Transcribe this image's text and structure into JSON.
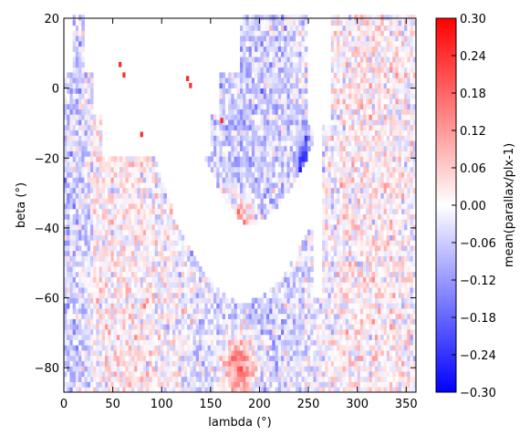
{
  "chart_data": {
    "type": "heatmap",
    "title": "",
    "xlabel": "lambda (°)",
    "ylabel": "beta (°)",
    "xlim": [
      0,
      360
    ],
    "ylim": [
      -87,
      20
    ],
    "x_ticks": [
      0,
      50,
      100,
      150,
      200,
      250,
      300,
      350
    ],
    "y_ticks": [
      -80,
      -60,
      -40,
      -20,
      0,
      20
    ],
    "grid": false,
    "colorbar": {
      "label": "mean(parallax/plx-1)",
      "colormap": "bwr",
      "vmin": -0.3,
      "vmax": 0.3,
      "ticks": [
        "0.30",
        "0.24",
        "0.18",
        "0.12",
        "0.06",
        "0.00",
        "−0.06",
        "−0.12",
        "−0.18",
        "−0.24",
        "−0.30"
      ],
      "colors": {
        "low": "#0000ff",
        "mid": "#ffffff",
        "high": "#ff0000"
      }
    },
    "structure": {
      "empty_region": "white band without data curving from upper-left (lambda ~0-60, beta 20 to -25) down to lambda ~180, beta ~-60 and back up near lambda ~250-270",
      "hotspots": [
        {
          "lambda": 175,
          "beta": -42,
          "mean": 0.25
        },
        {
          "lambda": 180,
          "beta": -80,
          "mean": 0.22
        }
      ],
      "cells_lambda_step": 3,
      "cells_beta_step": 1.5
    }
  }
}
